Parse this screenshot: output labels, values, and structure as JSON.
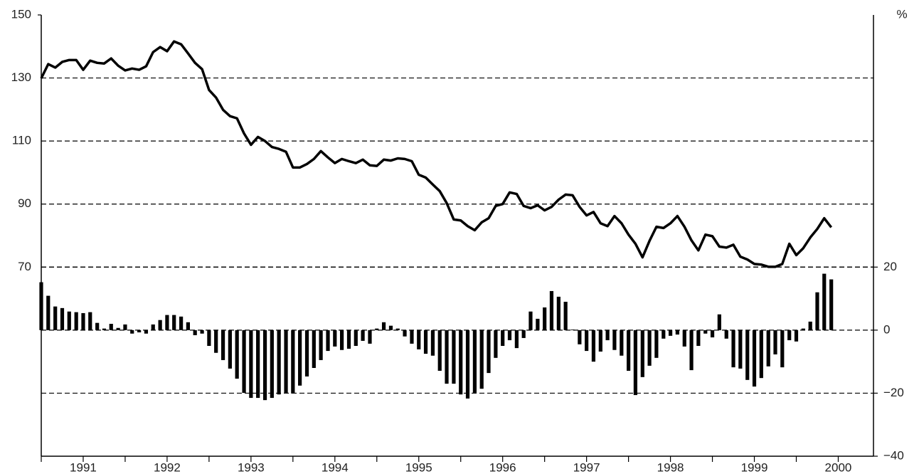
{
  "chart_data": {
    "type": "line",
    "y2label": "%",
    "x": [
      1991.0,
      1991.083,
      1991.167,
      1991.25,
      1991.333,
      1991.417,
      1991.5,
      1991.583,
      1991.667,
      1991.75,
      1991.833,
      1991.917,
      1992.0,
      1992.083,
      1992.167,
      1992.25,
      1992.333,
      1992.417,
      1992.5,
      1992.583,
      1992.667,
      1992.75,
      1992.833,
      1992.917,
      1993.0,
      1993.083,
      1993.167,
      1993.25,
      1993.333,
      1993.417,
      1993.5,
      1993.583,
      1993.667,
      1993.75,
      1993.833,
      1993.917,
      1994.0,
      1994.083,
      1994.167,
      1994.25,
      1994.333,
      1994.417,
      1994.5,
      1994.583,
      1994.667,
      1994.75,
      1994.833,
      1994.917,
      1995.0,
      1995.083,
      1995.167,
      1995.25,
      1995.333,
      1995.417,
      1995.5,
      1995.583,
      1995.667,
      1995.75,
      1995.833,
      1995.917,
      1996.0,
      1996.083,
      1996.167,
      1996.25,
      1996.333,
      1996.417,
      1996.5,
      1996.583,
      1996.667,
      1996.75,
      1996.833,
      1996.917,
      1997.0,
      1997.083,
      1997.167,
      1997.25,
      1997.333,
      1997.417,
      1997.5,
      1997.583,
      1997.667,
      1997.75,
      1997.833,
      1997.917,
      1998.0,
      1998.083,
      1998.167,
      1998.25,
      1998.333,
      1998.417,
      1998.5,
      1998.583,
      1998.667,
      1998.75,
      1998.833,
      1998.917,
      1999.0,
      1999.083,
      1999.167,
      1999.25,
      1999.333,
      1999.417,
      1999.5,
      1999.583,
      1999.667,
      1999.75,
      1999.833,
      1999.917,
      2000.0,
      2000.083,
      2000.167,
      2000.25,
      2000.333,
      2000.417
    ],
    "series": [
      {
        "color": "#000000",
        "values": [
          129.9,
          134.4,
          133.3,
          135.1,
          135.7,
          135.7,
          132.6,
          135.5,
          134.8,
          134.6,
          136.2,
          133.9,
          132.4,
          133,
          132.6,
          133.7,
          138.2,
          139.8,
          138.5,
          141.6,
          140.7,
          137.8,
          134.8,
          132.8,
          126.2,
          123.8,
          119.9,
          117.9,
          117.2,
          112.4,
          108.8,
          111.3,
          110,
          108.1,
          107.5,
          106.6,
          101.6,
          101.6,
          102.7,
          104.3,
          106.8,
          104.8,
          103,
          104.3,
          103.6,
          103,
          104.1,
          102.3,
          102.1,
          104.1,
          103.8,
          104.5,
          104.3,
          103.6,
          99.3,
          98.4,
          96.2,
          94.1,
          90.3,
          85.1,
          84.8,
          83,
          81.7,
          84.2,
          85.5,
          89.4,
          90,
          93.7,
          93.2,
          89.4,
          88.7,
          89.6,
          88,
          89.1,
          91.4,
          93,
          92.8,
          89.1,
          86.4,
          87.5,
          83.9,
          83,
          86.2,
          83.9,
          80.3,
          77.4,
          73.1,
          78.3,
          82.8,
          82.4,
          83.9,
          86.2,
          82.8,
          78.5,
          75.3,
          80.3,
          79.8,
          76.5,
          76.2,
          77.1,
          73.3,
          72.4,
          71,
          70.8,
          70.1,
          70.1,
          71,
          77.4,
          73.8,
          76,
          79.4,
          82.1,
          85.5,
          82.6
        ]
      },
      {
        "type": "bar",
        "axis": "y2",
        "color": "#000000",
        "values": [
          15.2,
          10.9,
          7.5,
          7,
          5.9,
          5.7,
          5.4,
          5.7,
          2.3,
          0.5,
          2,
          0.7,
          1.8,
          -1.1,
          -0.7,
          -1.1,
          1.8,
          3.2,
          4.8,
          4.8,
          4.3,
          2.5,
          -1.6,
          -1.1,
          -5,
          -7.2,
          -9.5,
          -12.2,
          -15.4,
          -19.9,
          -21.5,
          -21.5,
          -22.2,
          -21.5,
          -20.4,
          -19.9,
          -20.1,
          -17.6,
          -14.7,
          -12,
          -9.5,
          -6.6,
          -5.2,
          -6.3,
          -5.9,
          -5,
          -3.4,
          -4.3,
          0.5,
          2.5,
          1.4,
          0.5,
          -2,
          -4.3,
          -6.1,
          -7.5,
          -8.1,
          -12.9,
          -17,
          -17,
          -20.4,
          -21.7,
          -19.9,
          -18.6,
          -13.6,
          -8.8,
          -5,
          -3.2,
          -5.7,
          -2.5,
          5.9,
          3.6,
          7.2,
          12.4,
          10.6,
          9,
          0.2,
          -4.5,
          -6.6,
          -10,
          -6.8,
          -3.2,
          -6.3,
          -8.1,
          -12.9,
          -20.6,
          -14.9,
          -11.3,
          -8.8,
          -2.7,
          -1.8,
          -1.4,
          -5.2,
          -12.7,
          -5,
          -1.1,
          -2.3,
          5,
          -2.7,
          -11.8,
          -12.2,
          -15.8,
          -17.9,
          -15.2,
          -11.5,
          -7.7,
          -11.8,
          -3.2,
          -3.6,
          0.5,
          2.7,
          12,
          17.9,
          16.1
        ]
      }
    ],
    "xlim": [
      1991,
      2000.92
    ],
    "xticks": [
      {
        "value": 1991.5,
        "label": "1991"
      },
      {
        "value": 1992.5,
        "label": "1992"
      },
      {
        "value": 1993.5,
        "label": "1993"
      },
      {
        "value": 1994.5,
        "label": "1994"
      },
      {
        "value": 1995.5,
        "label": "1995"
      },
      {
        "value": 1996.5,
        "label": "1996"
      },
      {
        "value": 1997.5,
        "label": "1997"
      },
      {
        "value": 1998.5,
        "label": "1998"
      },
      {
        "value": 1999.5,
        "label": "1999"
      },
      {
        "value": 2000.5,
        "label": "2000"
      }
    ],
    "ylim": [
      10,
      150
    ],
    "yticks": [
      70,
      90,
      110,
      130,
      150
    ],
    "y2lim": [
      -40,
      100
    ],
    "y2ticks": [
      {
        "value": 20,
        "label": "20"
      },
      {
        "value": 0,
        "label": "0"
      },
      {
        "value": -20,
        "label": "−20"
      },
      {
        "value": -40,
        "label": "−40"
      }
    ],
    "grid": true
  }
}
